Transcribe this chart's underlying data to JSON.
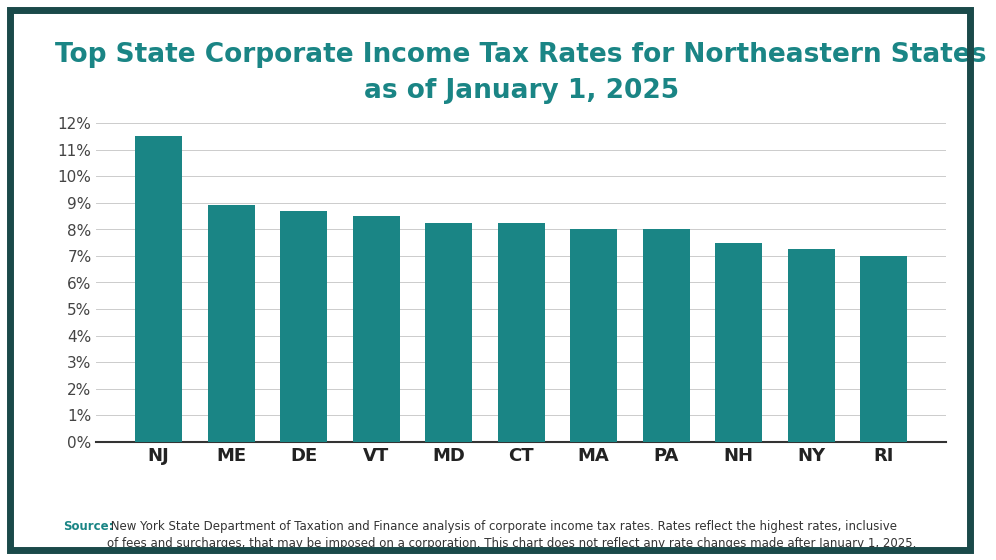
{
  "title_line1": "Top State Corporate Income Tax Rates for Northeastern States",
  "title_line2": "as of January 1, 2025",
  "states": [
    "NJ",
    "ME",
    "DE",
    "VT",
    "MD",
    "CT",
    "MA",
    "PA",
    "NH",
    "NY",
    "RI"
  ],
  "values": [
    11.5,
    8.93,
    8.7,
    8.5,
    8.25,
    8.25,
    8.0,
    8.0,
    7.5,
    7.25,
    7.0
  ],
  "bar_color": "#1a8585",
  "title_color": "#1a8585",
  "background_color": "#ffffff",
  "border_color": "#1a4a4a",
  "ylim": [
    0,
    12
  ],
  "source_label": "Source:",
  "source_text": " New York State Department of Taxation and Finance analysis of corporate income tax rates. Rates reflect the highest rates, inclusive\nof fees and surcharges, that may be imposed on a corporation. This chart does not reflect any rate changes made after January 1, 2025.",
  "source_color": "#1a8585",
  "source_text_color": "#333333",
  "title_fontsize": 19,
  "tick_fontsize": 11,
  "xtick_fontsize": 13,
  "source_fontsize": 8.5
}
